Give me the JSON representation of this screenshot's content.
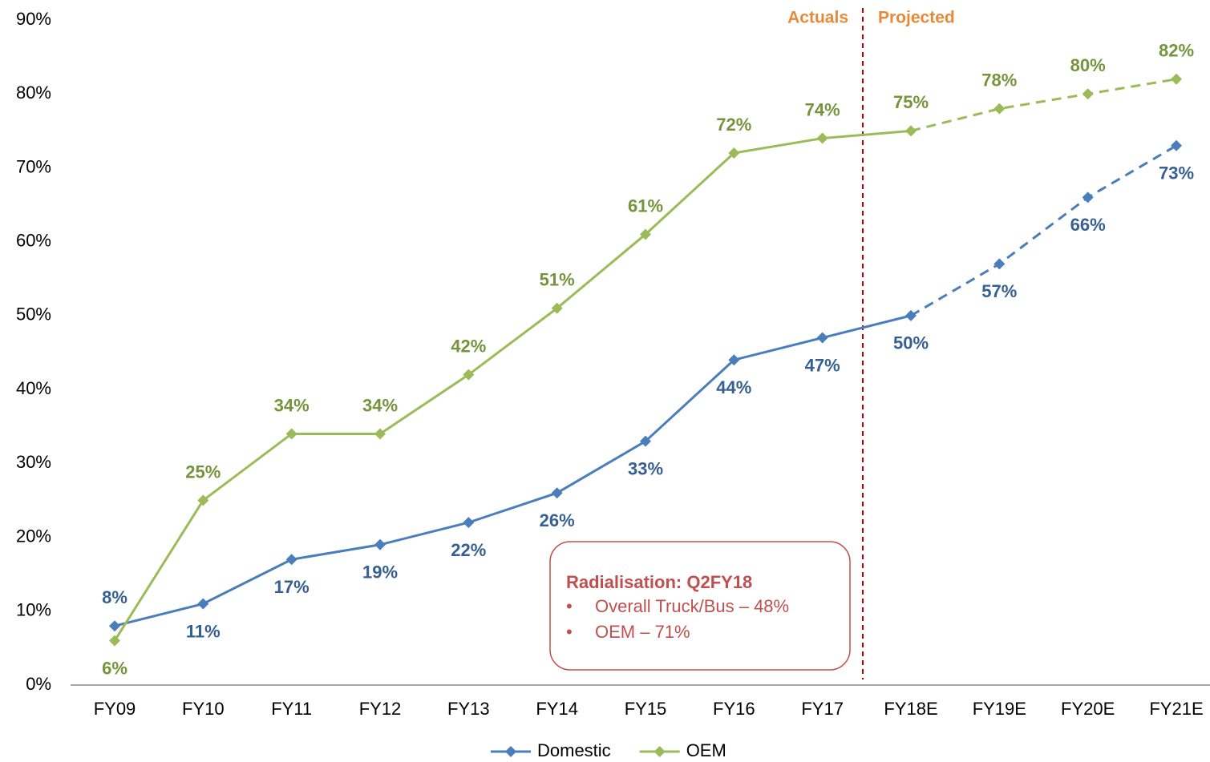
{
  "chart_data": {
    "type": "line",
    "categories": [
      "FY09",
      "FY10",
      "FY11",
      "FY12",
      "FY13",
      "FY14",
      "FY15",
      "FY16",
      "FY17",
      "FY18E",
      "FY19E",
      "FY20E",
      "FY21E"
    ],
    "series": [
      {
        "name": "Domestic",
        "color": "#4a7ebb",
        "label_color": "#376092",
        "values": [
          8,
          11,
          17,
          19,
          22,
          26,
          33,
          44,
          47,
          50,
          57,
          66,
          73
        ],
        "value_labels": [
          "8%",
          "11%",
          "17%",
          "19%",
          "22%",
          "26%",
          "33%",
          "44%",
          "47%",
          "50%",
          "57%",
          "66%",
          "73%"
        ]
      },
      {
        "name": "OEM",
        "color": "#9bbb59",
        "label_color": "#77933c",
        "values": [
          6,
          25,
          34,
          34,
          42,
          51,
          61,
          72,
          74,
          75,
          78,
          80,
          82
        ],
        "value_labels": [
          "6%",
          "25%",
          "34%",
          "34%",
          "42%",
          "51%",
          "61%",
          "72%",
          "74%",
          "75%",
          "78%",
          "80%",
          "82%"
        ]
      }
    ],
    "dashed_from": "FY18E",
    "ylim": [
      0,
      90
    ],
    "yticks": [
      {
        "value": 0,
        "label": "0%"
      },
      {
        "value": 10,
        "label": "10%"
      },
      {
        "value": 20,
        "label": "20%"
      },
      {
        "value": 30,
        "label": "30%"
      },
      {
        "value": 40,
        "label": "40%"
      },
      {
        "value": 50,
        "label": "50%"
      },
      {
        "value": 60,
        "label": "60%"
      },
      {
        "value": 70,
        "label": "70%"
      },
      {
        "value": 80,
        "label": "80%"
      },
      {
        "value": 90,
        "label": "90%"
      }
    ],
    "grid": false,
    "legend": "bottom",
    "annotations": {
      "left": "Actuals",
      "right": "Projected",
      "box": {
        "title": "Radialisation: Q2FY18",
        "bullets": [
          "Overall Truck/Bus – 48%",
          "OEM – 71%"
        ]
      }
    }
  }
}
